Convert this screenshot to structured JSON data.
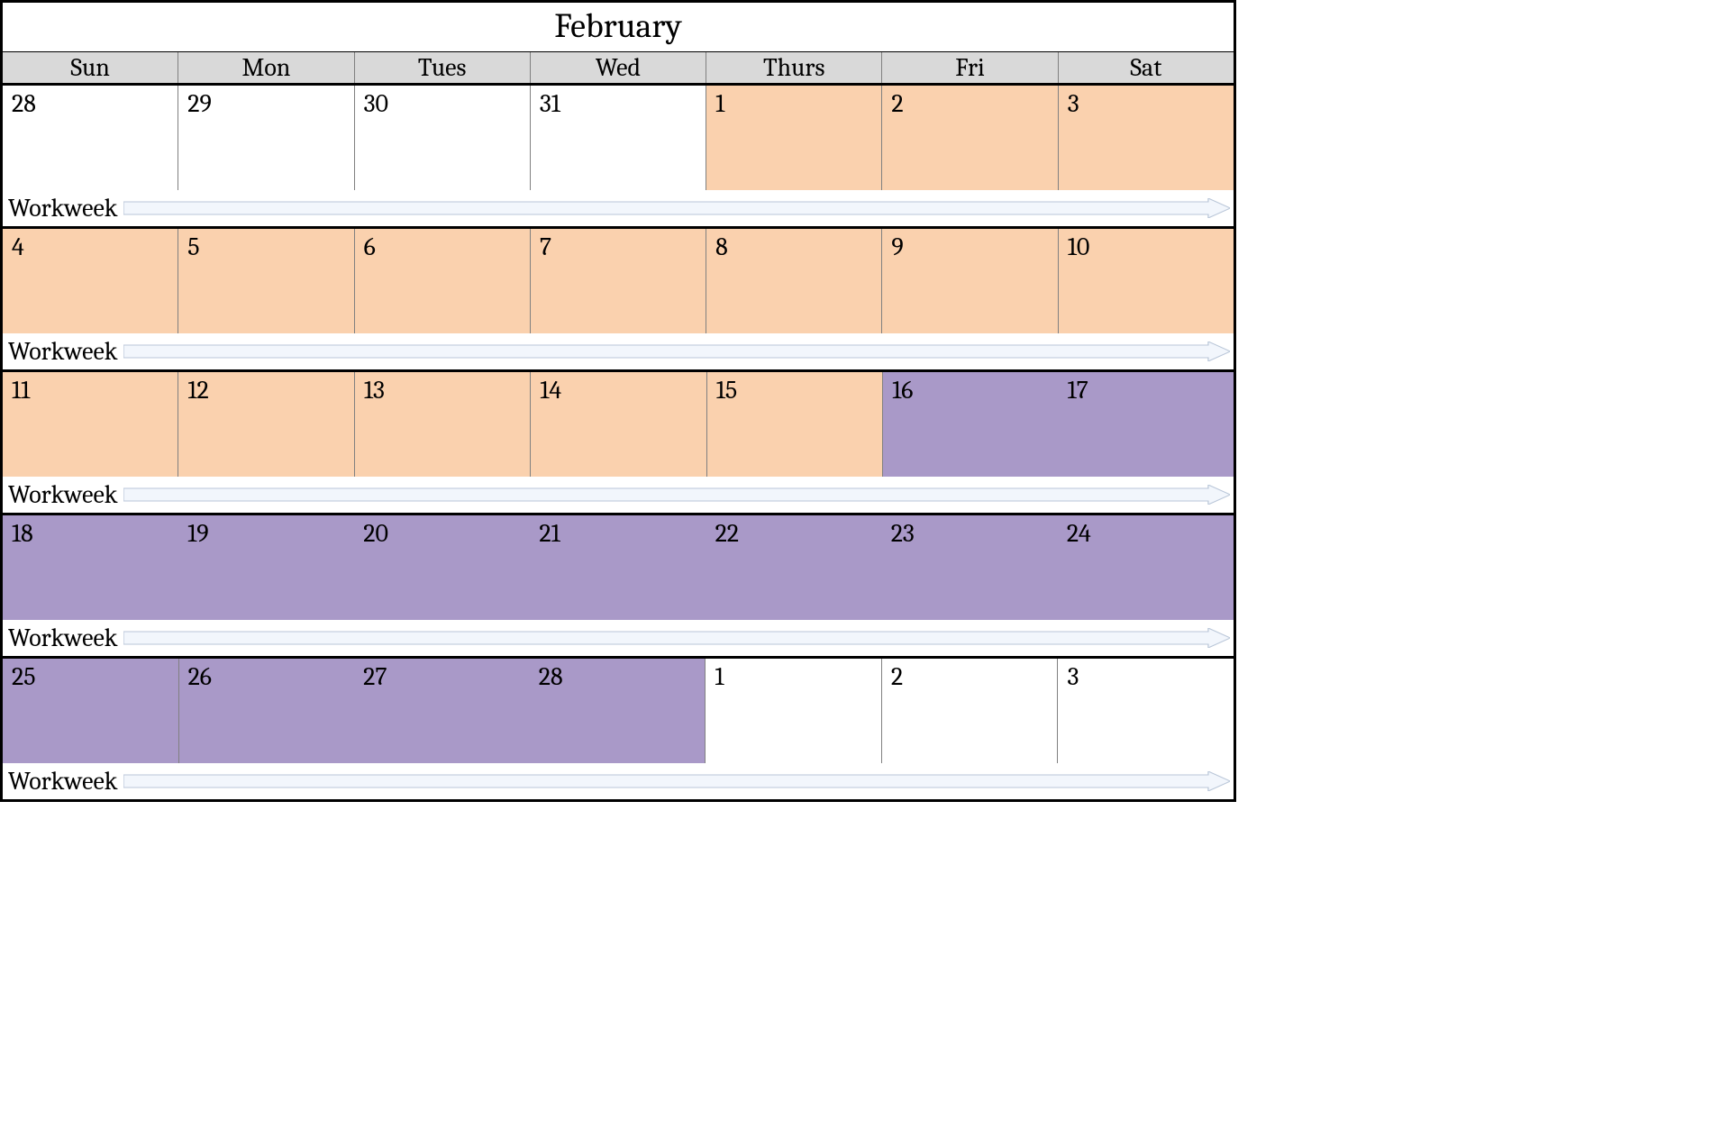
{
  "title": "February",
  "day_headers": [
    "Sun",
    "Mon",
    "Tues",
    "Wed",
    "Thurs",
    "Fri",
    "Sat"
  ],
  "workweek_label": "Workweek",
  "colors": {
    "none": "#ffffff",
    "peach": "#fad1ae",
    "purple": "#a999c8",
    "header_bg": "#d9d9d9",
    "arrow_fill": "#f2f6fc",
    "arrow_stroke": "#b9c6d8",
    "grid": "#808080",
    "frame": "#000000"
  },
  "font_family": "Cambria, Georgia, 'Times New Roman', serif",
  "title_fontsize_pt": 28,
  "header_fontsize_pt": 21,
  "daynum_fontsize_pt": 21,
  "weeks": [
    {
      "days": [
        {
          "n": "28",
          "fill": "none",
          "sep": true
        },
        {
          "n": "29",
          "fill": "none",
          "sep": true
        },
        {
          "n": "30",
          "fill": "none",
          "sep": true
        },
        {
          "n": "31",
          "fill": "none",
          "sep": true
        },
        {
          "n": "1",
          "fill": "peach",
          "sep": true
        },
        {
          "n": "2",
          "fill": "peach",
          "sep": true
        },
        {
          "n": "3",
          "fill": "peach",
          "sep": true
        }
      ]
    },
    {
      "days": [
        {
          "n": "4",
          "fill": "peach",
          "sep": true
        },
        {
          "n": "5",
          "fill": "peach",
          "sep": true
        },
        {
          "n": "6",
          "fill": "peach",
          "sep": true
        },
        {
          "n": "7",
          "fill": "peach",
          "sep": true
        },
        {
          "n": "8",
          "fill": "peach",
          "sep": true
        },
        {
          "n": "9",
          "fill": "peach",
          "sep": true
        },
        {
          "n": "10",
          "fill": "peach",
          "sep": true
        }
      ]
    },
    {
      "days": [
        {
          "n": "11",
          "fill": "peach",
          "sep": true
        },
        {
          "n": "12",
          "fill": "peach",
          "sep": true
        },
        {
          "n": "13",
          "fill": "peach",
          "sep": true
        },
        {
          "n": "14",
          "fill": "peach",
          "sep": true
        },
        {
          "n": "15",
          "fill": "peach",
          "sep": true
        },
        {
          "n": "16",
          "fill": "purple",
          "sep": true
        },
        {
          "n": "17",
          "fill": "purple",
          "sep": false
        }
      ]
    },
    {
      "days": [
        {
          "n": "18",
          "fill": "purple",
          "sep": true
        },
        {
          "n": "19",
          "fill": "purple",
          "sep": false
        },
        {
          "n": "20",
          "fill": "purple",
          "sep": false
        },
        {
          "n": "21",
          "fill": "purple",
          "sep": false
        },
        {
          "n": "22",
          "fill": "purple",
          "sep": false
        },
        {
          "n": "23",
          "fill": "purple",
          "sep": false
        },
        {
          "n": "24",
          "fill": "purple",
          "sep": false
        }
      ]
    },
    {
      "days": [
        {
          "n": "25",
          "fill": "purple",
          "sep": true
        },
        {
          "n": "26",
          "fill": "purple",
          "sep": true
        },
        {
          "n": "27",
          "fill": "purple",
          "sep": false
        },
        {
          "n": "28",
          "fill": "purple",
          "sep": false
        },
        {
          "n": "1",
          "fill": "none",
          "sep": true
        },
        {
          "n": "2",
          "fill": "none",
          "sep": true
        },
        {
          "n": "3",
          "fill": "none",
          "sep": true
        }
      ]
    }
  ]
}
